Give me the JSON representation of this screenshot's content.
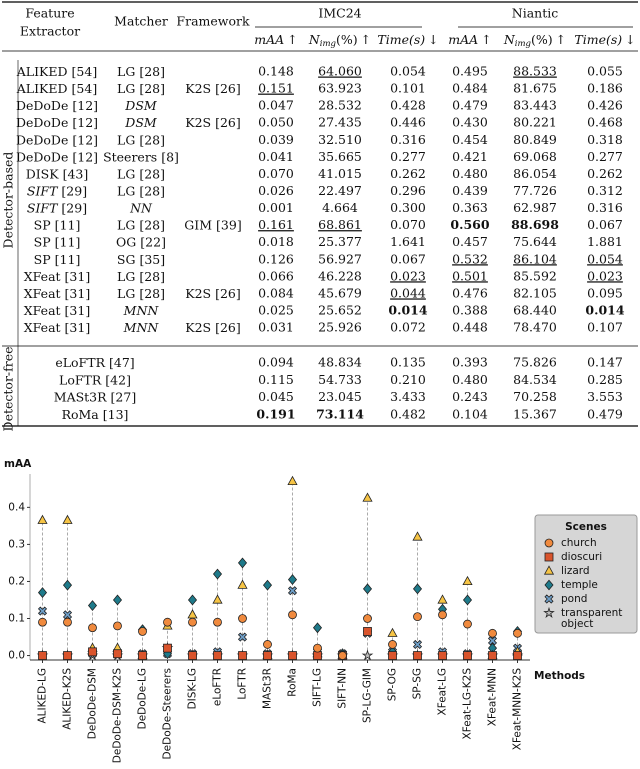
{
  "table": {
    "headers": {
      "extractor": [
        "Feature",
        "Extractor"
      ],
      "matcher": "Matcher",
      "framework": "Framework",
      "datasets": [
        "IMC24",
        "Niantic"
      ],
      "metrics": [
        {
          "name": "mAA",
          "arrow": "↑"
        },
        {
          "name": "N",
          "sub": "img",
          "unit": "(%)",
          "arrow": "↑"
        },
        {
          "name": "Time(s)",
          "arrow": "↓"
        }
      ]
    },
    "groups": [
      {
        "label": "Detector-based",
        "rows": [
          {
            "extractor": {
              "name": "ALIKED",
              "ref": "[54]"
            },
            "matcher": {
              "name": "LG",
              "ref": "[28]"
            },
            "values": [
              "0.148",
              {
                "text": "64.060",
                "style": "underline"
              },
              "0.054",
              "0.495",
              {
                "text": "88.533",
                "style": "underline"
              },
              "0.055"
            ]
          },
          {
            "extractor": {
              "name": "ALIKED",
              "ref": "[54]"
            },
            "matcher": {
              "name": "LG",
              "ref": "[28]"
            },
            "framework": {
              "name": "K2S",
              "ref": "[26]"
            },
            "values": [
              {
                "text": "0.151",
                "style": "underline"
              },
              "63.923",
              "0.101",
              "0.484",
              "81.675",
              "0.186"
            ]
          },
          {
            "extractor": {
              "name": "DeDoDe",
              "ref": "[12]"
            },
            "matcher": {
              "name": "DSM",
              "style": "italic"
            },
            "values": [
              "0.047",
              "28.532",
              "0.428",
              "0.479",
              "83.443",
              "0.426"
            ]
          },
          {
            "extractor": {
              "name": "DeDoDe",
              "ref": "[12]"
            },
            "matcher": {
              "name": "DSM",
              "style": "italic"
            },
            "framework": {
              "name": "K2S",
              "ref": "[26]"
            },
            "values": [
              "0.050",
              "27.435",
              "0.446",
              "0.430",
              "80.221",
              "0.468"
            ]
          },
          {
            "extractor": {
              "name": "DeDoDe",
              "ref": "[12]"
            },
            "matcher": {
              "name": "LG",
              "ref": "[28]"
            },
            "values": [
              "0.039",
              "32.510",
              "0.316",
              "0.454",
              "80.849",
              "0.318"
            ]
          },
          {
            "extractor": {
              "name": "DeDoDe",
              "ref": "[12]"
            },
            "matcher": {
              "name": "Steerers",
              "ref": "[8]"
            },
            "values": [
              "0.041",
              "35.665",
              "0.277",
              "0.421",
              "69.068",
              "0.277"
            ]
          },
          {
            "extractor": {
              "name": "DISK",
              "ref": "[43]"
            },
            "matcher": {
              "name": "LG",
              "ref": "[28]"
            },
            "values": [
              "0.070",
              "41.015",
              "0.262",
              "0.480",
              "86.054",
              "0.262"
            ]
          },
          {
            "extractor": {
              "name": "SIFT",
              "ref": "[29]",
              "style": "italic"
            },
            "matcher": {
              "name": "LG",
              "ref": "[28]"
            },
            "values": [
              "0.026",
              "22.497",
              "0.296",
              "0.439",
              "77.726",
              "0.312"
            ]
          },
          {
            "extractor": {
              "name": "SIFT",
              "ref": "[29]",
              "style": "italic"
            },
            "matcher": {
              "name": "NN",
              "style": "italic"
            },
            "values": [
              "0.001",
              "4.664",
              "0.300",
              "0.363",
              "62.987",
              "0.316"
            ]
          },
          {
            "extractor": {
              "name": "SP",
              "ref": "[11]"
            },
            "matcher": {
              "name": "LG",
              "ref": "[28]"
            },
            "framework": {
              "name": "GIM",
              "ref": "[39]"
            },
            "values": [
              {
                "text": "0.161",
                "style": "underline"
              },
              {
                "text": "68.861",
                "style": "underline"
              },
              "0.070",
              {
                "text": "0.560",
                "style": "bold"
              },
              {
                "text": "88.698",
                "style": "bold"
              },
              "0.067"
            ]
          },
          {
            "extractor": {
              "name": "SP",
              "ref": "[11]"
            },
            "matcher": {
              "name": "OG",
              "ref": "[22]"
            },
            "values": [
              "0.018",
              "25.377",
              "1.641",
              "0.457",
              "75.644",
              "1.881"
            ]
          },
          {
            "extractor": {
              "name": "SP",
              "ref": "[11]"
            },
            "matcher": {
              "name": "SG",
              "ref": "[35]"
            },
            "values": [
              "0.126",
              "56.927",
              "0.067",
              {
                "text": "0.532",
                "style": "underline"
              },
              {
                "text": "86.104",
                "style": "underline"
              },
              {
                "text": "0.054",
                "style": "underline"
              }
            ]
          },
          {
            "extractor": {
              "name": "XFeat",
              "ref": "[31]"
            },
            "matcher": {
              "name": "LG",
              "ref": "[28]"
            },
            "values": [
              "0.066",
              "46.228",
              {
                "text": "0.023",
                "style": "underline"
              },
              {
                "text": "0.501",
                "style": "underline"
              },
              "85.592",
              {
                "text": "0.023",
                "style": "underline"
              }
            ]
          },
          {
            "extractor": {
              "name": "XFeat",
              "ref": "[31]"
            },
            "matcher": {
              "name": "LG",
              "ref": "[28]"
            },
            "framework": {
              "name": "K2S",
              "ref": "[26]"
            },
            "values": [
              "0.084",
              "45.679",
              {
                "text": "0.044",
                "style": "underline"
              },
              "0.476",
              "82.105",
              "0.095"
            ]
          },
          {
            "extractor": {
              "name": "XFeat",
              "ref": "[31]"
            },
            "matcher": {
              "name": "MNN",
              "style": "italic"
            },
            "values": [
              "0.025",
              "25.652",
              {
                "text": "0.014",
                "style": "bold"
              },
              "0.388",
              "68.440",
              {
                "text": "0.014",
                "style": "bold"
              }
            ]
          },
          {
            "extractor": {
              "name": "XFeat",
              "ref": "[31]"
            },
            "matcher": {
              "name": "MNN",
              "style": "italic"
            },
            "framework": {
              "name": "K2S",
              "ref": "[26]"
            },
            "values": [
              "0.031",
              "25.926",
              "0.072",
              "0.448",
              "78.470",
              "0.107"
            ]
          }
        ]
      },
      {
        "label": "Detector-free",
        "rows": [
          {
            "extractor": {
              "name": "eLoFTR",
              "ref": "[47]"
            },
            "values": [
              "0.094",
              "48.834",
              "0.135",
              "0.393",
              "75.826",
              "0.147"
            ]
          },
          {
            "extractor": {
              "name": "LoFTR",
              "ref": "[42]"
            },
            "values": [
              "0.115",
              "54.733",
              "0.210",
              "0.480",
              "84.534",
              "0.285"
            ]
          },
          {
            "extractor": {
              "name": "MASt3R",
              "ref": "[27]"
            },
            "values": [
              "0.045",
              "23.045",
              "3.433",
              "0.243",
              "70.258",
              "3.553"
            ]
          },
          {
            "extractor": {
              "name": "RoMa",
              "ref": "[13]"
            },
            "values": [
              {
                "text": "0.191",
                "style": "bold"
              },
              {
                "text": "73.114",
                "style": "bold"
              },
              "0.482",
              "0.104",
              "15.367",
              "0.479"
            ]
          }
        ]
      }
    ]
  },
  "chart_data": {
    "type": "scatter",
    "ylabel": "mAA",
    "xlabel": "Methods",
    "categories": [
      "ALIKED-LG",
      "ALIKED-K2S",
      "DeDoDe-DSM",
      "DeDoDe-DSM-K2S",
      "DeDoDe-LG",
      "DeDoDe-Steerers",
      "DISK-LG",
      "eLoFTR",
      "LoFTR",
      "MASt3R",
      "RoMa",
      "SIFT-LG",
      "SIFT-NN",
      "SP-LG-GIM",
      "SP-OG",
      "SP-SG",
      "XFeat-LG",
      "XFeat-LG-K2S",
      "XFeat-MNN",
      "XFeat-MNN-K2S"
    ],
    "ylim": [
      -0.012,
      0.49
    ],
    "yticks": [
      {
        "value": 0,
        "label": "0.0"
      },
      {
        "value": 0.1,
        "label": "0.1"
      },
      {
        "value": 0.2,
        "label": "0.2"
      },
      {
        "value": 0.3,
        "label": "0.3"
      },
      {
        "value": 0.4,
        "label": "0.4"
      }
    ],
    "legend_title": "Scenes",
    "legend": "right",
    "series": [
      {
        "name": "church",
        "color": "#f08a3e",
        "marker": "circle",
        "values": [
          0.09,
          0.09,
          0.075,
          0.08,
          0.065,
          0.09,
          0.09,
          0.09,
          0.1,
          0.03,
          0.11,
          0.02,
          0,
          0.1,
          0.03,
          0.105,
          0.11,
          0.085,
          0.06,
          0.06
        ]
      },
      {
        "name": "dioscuri",
        "color": "#d9542c",
        "marker": "square",
        "values": [
          0,
          0,
          0.01,
          0.005,
          0,
          0.02,
          0,
          0,
          0,
          0,
          0,
          0,
          0,
          0.065,
          0,
          0,
          0,
          0,
          0,
          0
        ]
      },
      {
        "name": "lizard",
        "color": "#f6c445",
        "marker": "triangle",
        "values": [
          0.365,
          0.365,
          0.02,
          0.02,
          0,
          0.08,
          0.11,
          0.15,
          0.19,
          0,
          0.47,
          0.005,
          0,
          0.425,
          0.06,
          0.32,
          0.15,
          0.2,
          0,
          0.01
        ]
      },
      {
        "name": "temple",
        "color": "#1e7a8a",
        "marker": "diamond",
        "values": [
          0.17,
          0.19,
          0.135,
          0.15,
          0.07,
          0.005,
          0.15,
          0.22,
          0.25,
          0.19,
          0.205,
          0.075,
          0.005,
          0.18,
          0.01,
          0.18,
          0.125,
          0.15,
          0.02,
          0.065
        ]
      },
      {
        "name": "pond",
        "color": "#6f9fc8",
        "marker": "x",
        "values": [
          0.12,
          0.11,
          0.005,
          0.005,
          0.005,
          0.005,
          0.005,
          0.01,
          0.05,
          0.005,
          0.175,
          0.01,
          0.005,
          0.06,
          0.01,
          0.03,
          0.01,
          0.005,
          0.04,
          0.02
        ]
      },
      {
        "name": "transparent object",
        "color": "#bdbdbd",
        "marker": "star",
        "values": [
          0,
          0,
          0,
          0,
          0,
          0.02,
          0,
          0,
          0,
          0,
          0,
          0,
          0,
          0,
          0,
          0,
          0,
          0,
          0,
          0
        ]
      }
    ]
  }
}
